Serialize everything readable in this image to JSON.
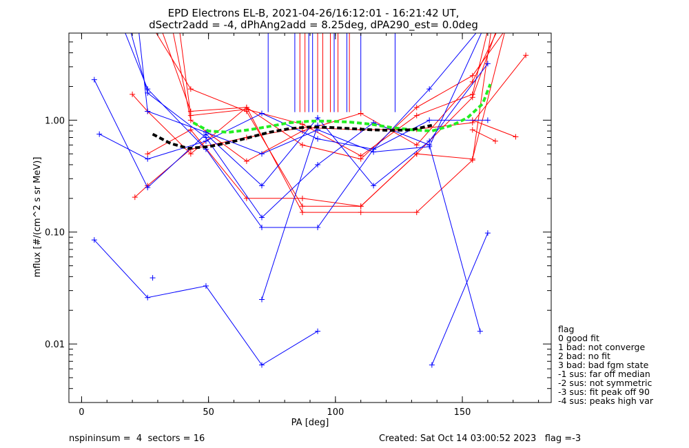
{
  "chart_data": {
    "type": "scatter",
    "title": "EPD Electrons EL-B, 2021-04-26/16:12:01 - 16:21:42 UT,",
    "subtitle": "dSectr2add = -4, dPhAng2add = 8.25deg, dPA290_est=   0.0deg",
    "xlabel": "PA [deg]",
    "ylabel": "mflux [#/(cm^2 s sr MeV)]",
    "xlim": [
      -5,
      185
    ],
    "ylim": [
      0.003,
      6
    ],
    "yscale": "log",
    "grid": false,
    "x_ticks": [
      {
        "value": 0,
        "label": "0"
      },
      {
        "value": 50,
        "label": "50"
      },
      {
        "value": 100,
        "label": "100"
      },
      {
        "value": 150,
        "label": "150"
      }
    ],
    "y_ticks": [
      {
        "value": 0.01,
        "label": "0.01"
      },
      {
        "value": 0.1,
        "label": "0.10"
      },
      {
        "value": 1,
        "label": "1.00"
      }
    ],
    "colors": {
      "red": "#ff0000",
      "blue": "#0000ff",
      "fit": "#000000",
      "green": "#22ee22"
    },
    "series": [
      {
        "color": "red",
        "points": [
          [
            21,
            0.205
          ],
          [
            26,
            0.26
          ],
          [
            43,
            0.55
          ],
          [
            65,
            0.7
          ],
          [
            87,
            0.86
          ],
          [
            110,
            0.82
          ],
          [
            132,
            0.83
          ],
          [
            154,
            0.95
          ],
          [
            175,
            3.8
          ]
        ]
      },
      {
        "color": "red",
        "points": [
          [
            20,
            1.7
          ],
          [
            26,
            1.2
          ],
          [
            43,
            0.5
          ],
          [
            65,
            1.3
          ],
          [
            87,
            0.15
          ],
          [
            110,
            0.15
          ],
          [
            132,
            0.15
          ],
          [
            154,
            0.44
          ],
          [
            162,
            8
          ]
        ]
      },
      {
        "color": "red",
        "points": [
          [
            26,
            0.5
          ],
          [
            43,
            0.82
          ],
          [
            65,
            0.2
          ],
          [
            87,
            0.2
          ],
          [
            110,
            0.17
          ],
          [
            132,
            0.5
          ],
          [
            154,
            1.6
          ],
          [
            165,
            8
          ]
        ]
      },
      {
        "color": "red",
        "points": [
          [
            26,
            8
          ],
          [
            43,
            1.9
          ],
          [
            65,
            1.2
          ],
          [
            87,
            0.17
          ],
          [
            110,
            0.17
          ],
          [
            132,
            0.5
          ],
          [
            154,
            0.45
          ],
          [
            168,
            8
          ]
        ]
      },
      {
        "color": "red",
        "points": [
          [
            30,
            8
          ],
          [
            43,
            1.2
          ],
          [
            65,
            1.3
          ],
          [
            87,
            0.6
          ],
          [
            110,
            0.45
          ],
          [
            132,
            1.3
          ],
          [
            154,
            2.5
          ],
          [
            170,
            8
          ]
        ]
      },
      {
        "color": "red",
        "points": [
          [
            35,
            8
          ],
          [
            43,
            1.0
          ],
          [
            65,
            0.43
          ],
          [
            87,
            0.8
          ],
          [
            110,
            1.15
          ],
          [
            132,
            0.6
          ],
          [
            154,
            2.2
          ],
          [
            166,
            8
          ]
        ]
      },
      {
        "color": "red",
        "points": [
          [
            38,
            8
          ],
          [
            43,
            1.1
          ],
          [
            65,
            1.25
          ],
          [
            87,
            0.92
          ],
          [
            110,
            0.48
          ],
          [
            132,
            1.1
          ],
          [
            154,
            1.7
          ],
          [
            161,
            8
          ]
        ]
      },
      {
        "color": "red",
        "points": [
          [
            154,
            0.82
          ],
          [
            163,
            0.65
          ]
        ]
      },
      {
        "color": "red",
        "points": [
          [
            154,
            1.0
          ],
          [
            171,
            0.71
          ]
        ]
      },
      {
        "color": "blue",
        "points": [
          [
            5,
            0.085
          ],
          [
            26,
            0.026
          ],
          [
            49,
            0.033
          ],
          [
            71,
            0.0065
          ],
          [
            93,
            0.013
          ]
        ]
      },
      {
        "color": "blue",
        "points": [
          [
            28,
            0.039
          ]
        ]
      },
      {
        "color": "blue",
        "points": [
          [
            5,
            2.3
          ],
          [
            26,
            0.25
          ],
          [
            49,
            0.75
          ],
          [
            71,
            0.26
          ],
          [
            93,
            1.05
          ],
          [
            115,
            0.26
          ],
          [
            137,
            0.65
          ],
          [
            160,
            3.2
          ]
        ]
      },
      {
        "color": "blue",
        "points": [
          [
            7,
            0.75
          ],
          [
            26,
            0.45
          ],
          [
            49,
            0.65
          ],
          [
            71,
            1.15
          ],
          [
            93,
            0.68
          ],
          [
            115,
            0.55
          ],
          [
            137,
            1.9
          ],
          [
            160,
            8
          ]
        ]
      },
      {
        "color": "blue",
        "points": [
          [
            15,
            8
          ],
          [
            26,
            1.9
          ],
          [
            49,
            0.55
          ],
          [
            71,
            0.11
          ],
          [
            93,
            0.11
          ],
          [
            115,
            0.55
          ],
          [
            137,
            1.0
          ],
          [
            160,
            1.0
          ]
        ]
      },
      {
        "color": "blue",
        "points": [
          [
            18,
            8
          ],
          [
            26,
            1.75
          ],
          [
            49,
            0.7
          ],
          [
            71,
            0.135
          ],
          [
            93,
            0.4
          ],
          [
            115,
            0.95
          ],
          [
            137,
            0.6
          ],
          [
            157,
            0.013
          ]
        ]
      },
      {
        "color": "blue",
        "points": [
          [
            22,
            8
          ],
          [
            26,
            1.2
          ],
          [
            49,
            0.78
          ],
          [
            71,
            0.5
          ],
          [
            93,
            0.82
          ],
          [
            115,
            0.52
          ],
          [
            137,
            0.58
          ],
          [
            160,
            8
          ]
        ]
      },
      {
        "color": "blue",
        "points": [
          [
            71,
            0.025
          ],
          [
            93,
            0.9
          ]
        ]
      },
      {
        "color": "blue",
        "points": [
          [
            138,
            0.0065
          ],
          [
            160,
            0.098
          ]
        ]
      }
    ],
    "fit_line": {
      "x": [
        28,
        35,
        42,
        50,
        58,
        66,
        74,
        82,
        90,
        98,
        106,
        114,
        122,
        130,
        138
      ],
      "y": [
        0.75,
        0.62,
        0.56,
        0.58,
        0.63,
        0.7,
        0.78,
        0.84,
        0.87,
        0.86,
        0.84,
        0.82,
        0.81,
        0.82,
        0.9
      ]
    },
    "green_line": {
      "x": [
        44,
        50,
        58,
        66,
        74,
        82,
        90,
        98,
        106,
        114,
        122,
        130,
        138,
        146,
        152,
        158,
        161
      ],
      "y": [
        0.95,
        0.8,
        0.78,
        0.82,
        0.88,
        0.95,
        0.98,
        0.98,
        0.96,
        0.92,
        0.86,
        0.82,
        0.8,
        0.9,
        1.05,
        1.4,
        2.1
      ]
    },
    "vertical_lines": [
      {
        "x": 73.5,
        "color": "blue"
      },
      {
        "x": 84,
        "color": "blue"
      },
      {
        "x": 86,
        "color": "red"
      },
      {
        "x": 88,
        "color": "red"
      },
      {
        "x": 89.5,
        "color": "blue"
      },
      {
        "x": 91,
        "color": "blue"
      },
      {
        "x": 93,
        "color": "red"
      },
      {
        "x": 95,
        "color": "red"
      },
      {
        "x": 98,
        "color": "red"
      },
      {
        "x": 99.5,
        "color": "blue"
      },
      {
        "x": 101,
        "color": "red"
      },
      {
        "x": 104.5,
        "color": "blue"
      },
      {
        "x": 105.5,
        "color": "red"
      },
      {
        "x": 110,
        "color": "blue"
      },
      {
        "x": 123.5,
        "color": "blue"
      }
    ],
    "vertical_line_bottom": 1.18,
    "legend": {
      "title": "flag",
      "entries": [
        " 0 good fit",
        " 1 bad: not converge",
        " 2 bad: no fit",
        " 3 bad: bad fgm state",
        "-1 sus: far off median",
        "-2 sus: not symmetric",
        "-3 sus: fit peak off 90",
        "-4 sus: peaks high var"
      ]
    }
  },
  "footer": {
    "left": "nspininsum =  4  sectors = 16",
    "right": "Created: Sat Oct 14 03:00:52 2023   flag =-3"
  }
}
